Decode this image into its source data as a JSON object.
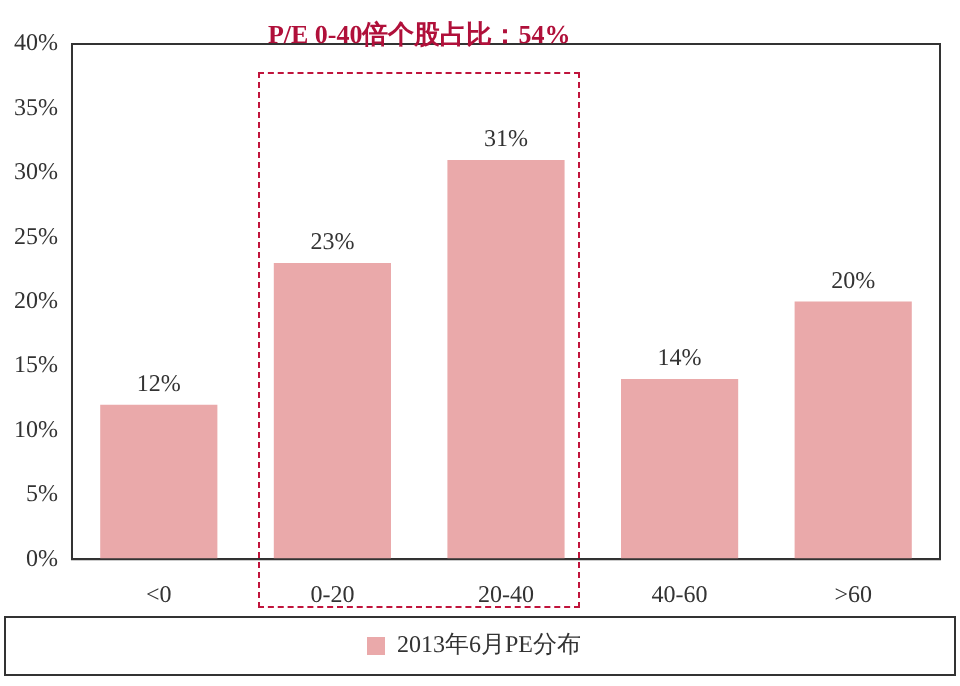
{
  "chart_data": {
    "type": "bar",
    "categories": [
      "<0",
      "0-20",
      "20-40",
      "40-60",
      ">60"
    ],
    "series": [
      {
        "name": "2013年6月PE分布",
        "color": "#eaa9aa",
        "values": [
          12,
          23,
          31,
          14,
          20
        ]
      }
    ],
    "value_labels": [
      "12%",
      "23%",
      "31%",
      "14%",
      "20%"
    ],
    "ylim": [
      0,
      40
    ],
    "yticks": [
      {
        "value": 0,
        "label": "0%"
      },
      {
        "value": 5,
        "label": "5%"
      },
      {
        "value": 10,
        "label": "10%"
      },
      {
        "value": 15,
        "label": "15%"
      },
      {
        "value": 20,
        "label": "20%"
      },
      {
        "value": 25,
        "label": "25%"
      },
      {
        "value": 30,
        "label": "30%"
      },
      {
        "value": 35,
        "label": "35%"
      },
      {
        "value": 40,
        "label": "40%"
      }
    ],
    "annotations": [
      "P/E 0-40倍个股占比：54%"
    ],
    "grid": false,
    "legend": "bottom"
  }
}
